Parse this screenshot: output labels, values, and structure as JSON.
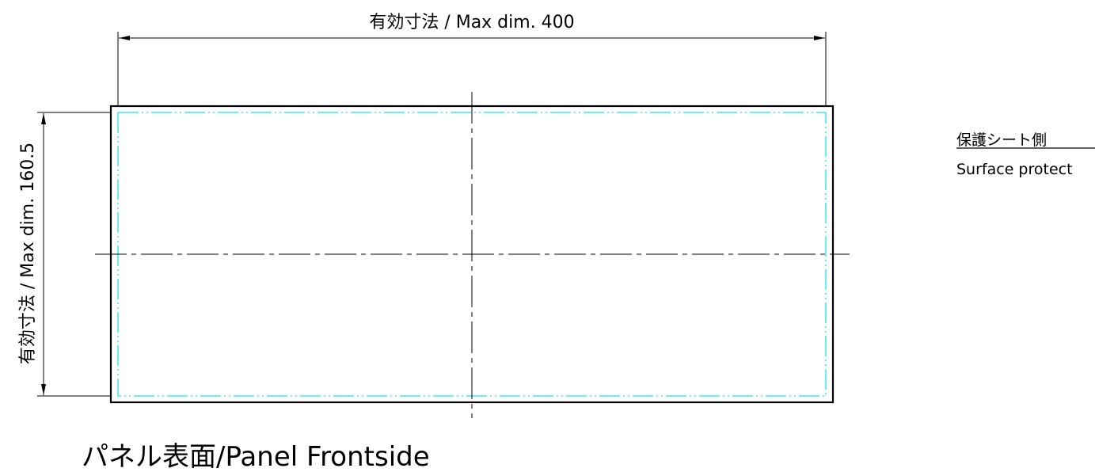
{
  "drawing": {
    "width_dimension": {
      "label": "有効寸法 / Max dim. 400",
      "value": 400
    },
    "height_dimension": {
      "label": "有効寸法 / Max dim. 160.5",
      "value": 160.5
    },
    "protection_note": {
      "label_jp": "保護シート側",
      "label_en": "Surface protect"
    },
    "view_title": "パネル表面/Panel Frontside",
    "colors": {
      "outline": "#000000",
      "effective_area": "#19e6e6",
      "center_line": "#000000"
    }
  }
}
